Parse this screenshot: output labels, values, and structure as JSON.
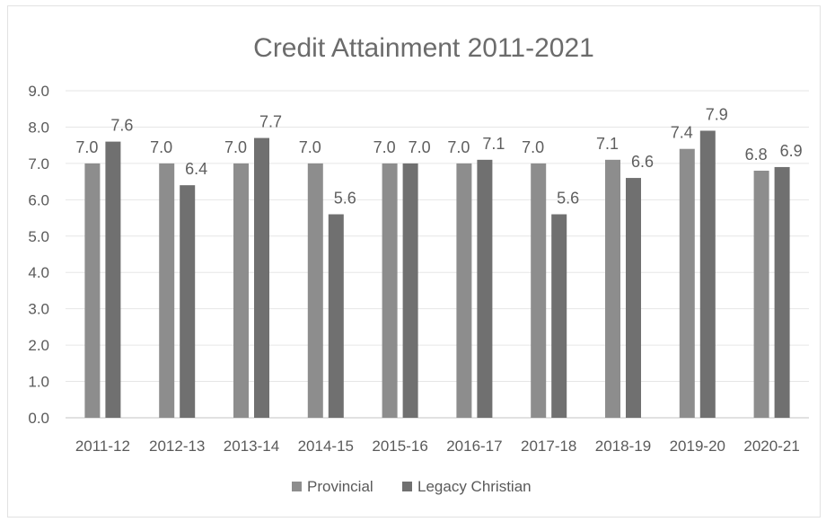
{
  "chart_data": {
    "type": "bar",
    "title": "Credit Attainment 2011-2021",
    "xlabel": "",
    "ylabel": "",
    "ylim": [
      0,
      9
    ],
    "yticks": [
      "0.0",
      "1.0",
      "2.0",
      "3.0",
      "4.0",
      "5.0",
      "6.0",
      "7.0",
      "8.0",
      "9.0"
    ],
    "categories": [
      "2011-12",
      "2012-13",
      "2013-14",
      "2014-15",
      "2015-16",
      "2016-17",
      "2017-18",
      "2018-19",
      "2019-20",
      "2020-21"
    ],
    "series": [
      {
        "name": "Provincial",
        "color": "#8d8d8d",
        "values": [
          7.0,
          7.0,
          7.0,
          7.0,
          7.0,
          7.0,
          7.0,
          7.1,
          7.4,
          6.8
        ],
        "labels": [
          "7.0",
          "7.0",
          "7.0",
          "7.0",
          "7.0",
          "7.0",
          "7.0",
          "7.1",
          "7.4",
          "6.8"
        ]
      },
      {
        "name": "Legacy Christian",
        "color": "#707070",
        "values": [
          7.6,
          6.4,
          7.7,
          5.6,
          7.0,
          7.1,
          5.6,
          6.6,
          7.9,
          6.9
        ],
        "labels": [
          "7.6",
          "6.4",
          "7.7",
          "5.6",
          "7.0",
          "7.1",
          "5.6",
          "6.6",
          "7.9",
          "6.9"
        ]
      }
    ],
    "grid": true,
    "legend": "bottom"
  }
}
